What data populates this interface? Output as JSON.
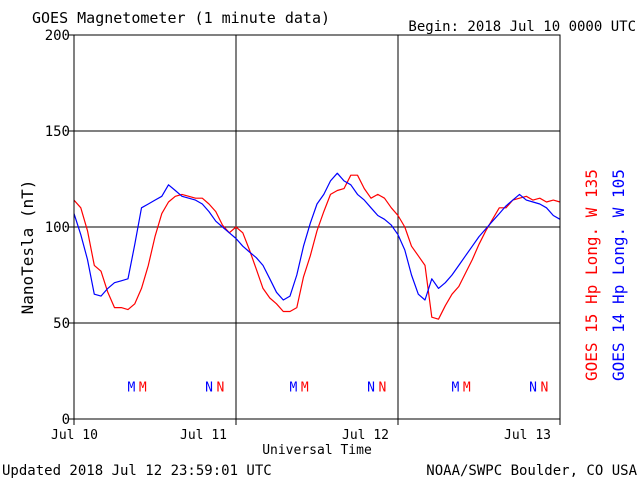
{
  "chart_data": {
    "type": "line",
    "title": "GOES Magnetometer (1 minute data)",
    "begin_label": "Begin:  2018 Jul 10 0000 UTC",
    "xlabel": "Universal Time",
    "ylabel": "NanoTesla (nT)",
    "ylim": [
      0,
      200
    ],
    "yticks": [
      0,
      50,
      100,
      150,
      200
    ],
    "xlim": [
      0,
      72
    ],
    "x_unit": "hours since 2018 Jul 10 0000 UTC",
    "xtick_labels": [
      {
        "x": 0,
        "label": "Jul 10"
      },
      {
        "x": 24,
        "label": "Jul 11"
      },
      {
        "x": 48,
        "label": "Jul 12"
      },
      {
        "x": 72,
        "label": "Jul 13"
      }
    ],
    "grid": true,
    "footer_left": "Updated 2018 Jul 12 23:59:01 UTC",
    "footer_right": "NOAA/SWPC Boulder, CO USA",
    "series": [
      {
        "name": "GOES 15 Hp  Long. W 135",
        "color": "#ff0000",
        "x": [
          0,
          1,
          2,
          3,
          4,
          5,
          6,
          7,
          8,
          9,
          10,
          11,
          12,
          13,
          14,
          15,
          16,
          17,
          18,
          19,
          20,
          21,
          22,
          23,
          24,
          25,
          26,
          27,
          28,
          29,
          30,
          31,
          32,
          33,
          34,
          35,
          36,
          37,
          38,
          39,
          40,
          41,
          42,
          43,
          44,
          45,
          46,
          47,
          48,
          49,
          50,
          51,
          52,
          53,
          54,
          55,
          56,
          57,
          58,
          59,
          60,
          61,
          62,
          63,
          64,
          65,
          66,
          67,
          68,
          69,
          70,
          71,
          72
        ],
        "values": [
          114,
          110,
          98,
          80,
          77,
          66,
          58,
          58,
          57,
          60,
          68,
          80,
          95,
          107,
          113,
          116,
          117,
          116,
          115,
          115,
          112,
          108,
          101,
          97,
          100,
          97,
          88,
          78,
          68,
          63,
          60,
          56,
          56,
          58,
          74,
          85,
          98,
          108,
          117,
          119,
          120,
          127,
          127,
          120,
          115,
          117,
          115,
          110,
          106,
          100,
          90,
          85,
          80,
          53,
          52,
          59,
          65,
          69,
          76,
          83,
          91,
          98,
          104,
          110,
          110,
          114,
          115,
          116,
          114,
          115,
          113,
          114,
          113
        ]
      },
      {
        "name": "GOES 14 Hp  Long. W 105",
        "color": "#0000ff",
        "x": [
          0,
          1,
          2,
          3,
          4,
          5,
          6,
          7,
          8,
          9,
          10,
          11,
          12,
          13,
          14,
          15,
          16,
          17,
          18,
          19,
          20,
          21,
          22,
          23,
          24,
          25,
          26,
          27,
          28,
          29,
          30,
          31,
          32,
          33,
          34,
          35,
          36,
          37,
          38,
          39,
          40,
          41,
          42,
          43,
          44,
          45,
          46,
          47,
          48,
          49,
          50,
          51,
          52,
          53,
          54,
          55,
          56,
          57,
          58,
          59,
          60,
          61,
          62,
          63,
          64,
          65,
          66,
          67,
          68,
          69,
          70,
          71,
          72
        ],
        "values": [
          107,
          96,
          83,
          65,
          64,
          68,
          71,
          72,
          73,
          91,
          110,
          112,
          114,
          116,
          122,
          119,
          116,
          115,
          114,
          112,
          108,
          103,
          100,
          97,
          94,
          90,
          87,
          84,
          80,
          73,
          66,
          62,
          64,
          75,
          90,
          102,
          112,
          117,
          124,
          128,
          124,
          122,
          117,
          114,
          110,
          106,
          104,
          101,
          96,
          88,
          75,
          65,
          62,
          73,
          68,
          71,
          75,
          80,
          85,
          90,
          95,
          99,
          103,
          107,
          111,
          114,
          117,
          114,
          113,
          112,
          110,
          106,
          104
        ]
      }
    ],
    "markers": [
      {
        "x": 8.5,
        "label": "M",
        "color": "#0000ff"
      },
      {
        "x": 10.2,
        "label": "M",
        "color": "#ff0000"
      },
      {
        "x": 20.0,
        "label": "N",
        "color": "#0000ff"
      },
      {
        "x": 21.7,
        "label": "N",
        "color": "#ff0000"
      },
      {
        "x": 32.5,
        "label": "M",
        "color": "#0000ff"
      },
      {
        "x": 34.2,
        "label": "M",
        "color": "#ff0000"
      },
      {
        "x": 44.0,
        "label": "N",
        "color": "#0000ff"
      },
      {
        "x": 45.7,
        "label": "N",
        "color": "#ff0000"
      },
      {
        "x": 56.5,
        "label": "M",
        "color": "#0000ff"
      },
      {
        "x": 58.2,
        "label": "M",
        "color": "#ff0000"
      },
      {
        "x": 68.0,
        "label": "N",
        "color": "#0000ff"
      },
      {
        "x": 69.7,
        "label": "N",
        "color": "#ff0000"
      }
    ],
    "marker_y": 17
  }
}
